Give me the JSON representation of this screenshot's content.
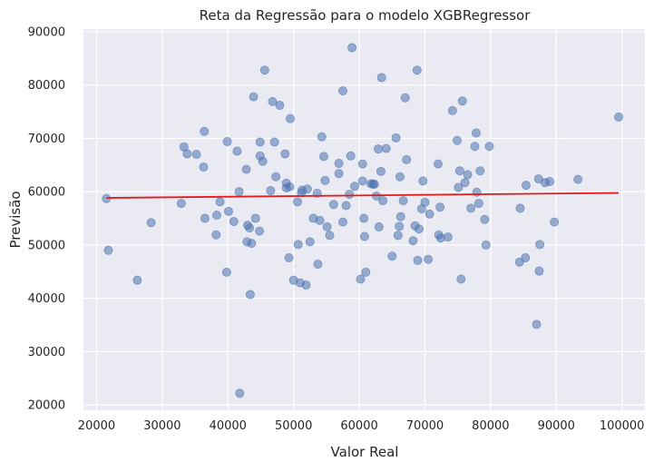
{
  "chart_data": {
    "type": "scatter",
    "title": "Reta da Regressão para o modelo XGBRegressor",
    "xlabel": "Valor Real",
    "ylabel": "Previsão",
    "xlim": [
      18000,
      103500
    ],
    "ylim": [
      19000,
      90500
    ],
    "xticks": [
      20000,
      30000,
      40000,
      50000,
      60000,
      70000,
      80000,
      90000,
      100000
    ],
    "yticks": [
      20000,
      30000,
      40000,
      50000,
      60000,
      70000,
      80000,
      90000
    ],
    "grid": true,
    "colors": {
      "background": "#eaeaf2",
      "grid": "#ffffff",
      "points": "#4c72b0",
      "line": "#e41a1c"
    },
    "series": [
      {
        "kind": "points",
        "points": [
          [
            21500,
            58700
          ],
          [
            21800,
            49000
          ],
          [
            26200,
            43400
          ],
          [
            28300,
            54200
          ],
          [
            32900,
            57800
          ],
          [
            33300,
            68400
          ],
          [
            33800,
            67100
          ],
          [
            35200,
            67000
          ],
          [
            36300,
            64600
          ],
          [
            36400,
            71300
          ],
          [
            36500,
            55000
          ],
          [
            38200,
            51900
          ],
          [
            38300,
            55600
          ],
          [
            38800,
            58100
          ],
          [
            39800,
            44900
          ],
          [
            39900,
            69400
          ],
          [
            40100,
            56300
          ],
          [
            40900,
            54400
          ],
          [
            41400,
            67600
          ],
          [
            41700,
            60000
          ],
          [
            41800,
            22200
          ],
          [
            42800,
            64200
          ],
          [
            42900,
            50600
          ],
          [
            43000,
            53700
          ],
          [
            43300,
            53200
          ],
          [
            43400,
            40700
          ],
          [
            43600,
            50300
          ],
          [
            43900,
            77800
          ],
          [
            44200,
            55000
          ],
          [
            44800,
            52600
          ],
          [
            44900,
            69300
          ],
          [
            44900,
            66700
          ],
          [
            45300,
            65700
          ],
          [
            45600,
            82800
          ],
          [
            46500,
            60200
          ],
          [
            46800,
            76900
          ],
          [
            47100,
            69300
          ],
          [
            47300,
            62800
          ],
          [
            47900,
            76200
          ],
          [
            48700,
            67100
          ],
          [
            48900,
            61600
          ],
          [
            48900,
            60700
          ],
          [
            49300,
            47600
          ],
          [
            49400,
            60900
          ],
          [
            49500,
            73700
          ],
          [
            50000,
            43400
          ],
          [
            50600,
            58100
          ],
          [
            50700,
            50100
          ],
          [
            51000,
            42900
          ],
          [
            51200,
            59800
          ],
          [
            51300,
            60300
          ],
          [
            51900,
            42500
          ],
          [
            52100,
            60500
          ],
          [
            52500,
            50600
          ],
          [
            53000,
            55000
          ],
          [
            53600,
            59700
          ],
          [
            53700,
            46400
          ],
          [
            54000,
            54600
          ],
          [
            54300,
            70300
          ],
          [
            54600,
            66600
          ],
          [
            54800,
            62100
          ],
          [
            55100,
            53400
          ],
          [
            55500,
            51800
          ],
          [
            56100,
            57600
          ],
          [
            56900,
            65300
          ],
          [
            56900,
            63400
          ],
          [
            57500,
            54300
          ],
          [
            57500,
            78900
          ],
          [
            58000,
            57400
          ],
          [
            58500,
            59500
          ],
          [
            58700,
            66700
          ],
          [
            58900,
            87000
          ],
          [
            59300,
            61000
          ],
          [
            60200,
            43600
          ],
          [
            60500,
            65200
          ],
          [
            60500,
            62000
          ],
          [
            60700,
            55000
          ],
          [
            60800,
            51600
          ],
          [
            61000,
            44900
          ],
          [
            61800,
            61500
          ],
          [
            62100,
            61400
          ],
          [
            62300,
            61400
          ],
          [
            62600,
            59200
          ],
          [
            62900,
            68000
          ],
          [
            63000,
            53400
          ],
          [
            63300,
            63800
          ],
          [
            63400,
            81400
          ],
          [
            63600,
            58300
          ],
          [
            64100,
            68100
          ],
          [
            65000,
            47900
          ],
          [
            65600,
            70100
          ],
          [
            65900,
            51800
          ],
          [
            66100,
            53500
          ],
          [
            66200,
            62800
          ],
          [
            66300,
            55300
          ],
          [
            66700,
            58300
          ],
          [
            67000,
            77600
          ],
          [
            67200,
            66000
          ],
          [
            68200,
            50800
          ],
          [
            68500,
            53600
          ],
          [
            68800,
            82800
          ],
          [
            68900,
            47100
          ],
          [
            69100,
            53000
          ],
          [
            69500,
            56800
          ],
          [
            69700,
            62000
          ],
          [
            70000,
            58000
          ],
          [
            70500,
            47300
          ],
          [
            70700,
            55800
          ],
          [
            72000,
            65200
          ],
          [
            72100,
            51900
          ],
          [
            72300,
            57100
          ],
          [
            72400,
            51300
          ],
          [
            73500,
            51500
          ],
          [
            74200,
            75200
          ],
          [
            74900,
            69600
          ],
          [
            75100,
            60800
          ],
          [
            75300,
            63900
          ],
          [
            75500,
            43600
          ],
          [
            75700,
            77000
          ],
          [
            76100,
            61700
          ],
          [
            76500,
            63200
          ],
          [
            77000,
            56900
          ],
          [
            77600,
            68500
          ],
          [
            77800,
            71000
          ],
          [
            77900,
            59900
          ],
          [
            78200,
            57800
          ],
          [
            78400,
            63900
          ],
          [
            79100,
            54800
          ],
          [
            79300,
            50000
          ],
          [
            79800,
            68500
          ],
          [
            84400,
            46800
          ],
          [
            84500,
            56900
          ],
          [
            85300,
            47600
          ],
          [
            85400,
            61200
          ],
          [
            87000,
            35100
          ],
          [
            87300,
            62400
          ],
          [
            87400,
            45100
          ],
          [
            87500,
            50100
          ],
          [
            88300,
            61700
          ],
          [
            89000,
            61900
          ],
          [
            89700,
            54300
          ],
          [
            93300,
            62300
          ],
          [
            99500,
            74000
          ]
        ]
      },
      {
        "kind": "regression-line",
        "x": [
          21500,
          99500
        ],
        "y": [
          58830,
          59760
        ]
      }
    ]
  }
}
